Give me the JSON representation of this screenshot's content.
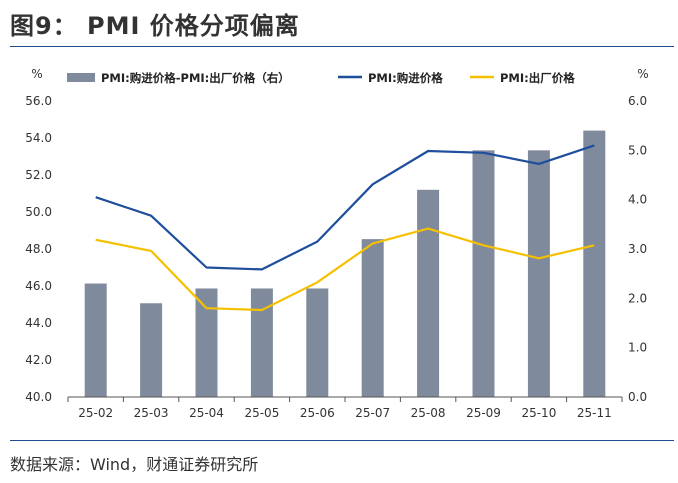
{
  "title": "图9： PMI 价格分项偏离",
  "source": "数据来源：Wind，财通证券研究所",
  "colors": {
    "bar": "#7f8a9c",
    "line1": "#1f4e9c",
    "line2": "#f5c000",
    "rule": "#1f4e8c"
  },
  "chart_data": {
    "type": "bar+line",
    "categories": [
      "25-02",
      "25-03",
      "25-04",
      "25-05",
      "25-06",
      "25-07",
      "25-08",
      "25-09",
      "25-10",
      "25-11"
    ],
    "left_unit": "%",
    "right_unit": "%",
    "left_ylim": [
      40,
      56
    ],
    "right_ylim": [
      0,
      6
    ],
    "left_ticks": [
      "40.0",
      "42.0",
      "44.0",
      "46.0",
      "48.0",
      "50.0",
      "52.0",
      "54.0",
      "56.0"
    ],
    "right_ticks": [
      "0.0",
      "1.0",
      "2.0",
      "3.0",
      "4.0",
      "5.0",
      "6.0"
    ],
    "series": [
      {
        "name": "PMI:购进价格-PMI:出厂价格（右）",
        "type": "bar",
        "axis": "right",
        "values": [
          2.3,
          1.9,
          2.2,
          2.2,
          2.2,
          3.2,
          4.2,
          5.0,
          5.0,
          5.4
        ]
      },
      {
        "name": "PMI:购进价格",
        "type": "line",
        "axis": "left",
        "values": [
          50.8,
          49.8,
          47.0,
          46.9,
          48.4,
          51.5,
          53.3,
          53.2,
          52.6,
          53.6
        ]
      },
      {
        "name": "PMI:出厂价格",
        "type": "line",
        "axis": "left",
        "values": [
          48.5,
          47.9,
          44.8,
          44.7,
          46.2,
          48.3,
          49.1,
          48.2,
          47.5,
          48.2
        ]
      }
    ]
  }
}
